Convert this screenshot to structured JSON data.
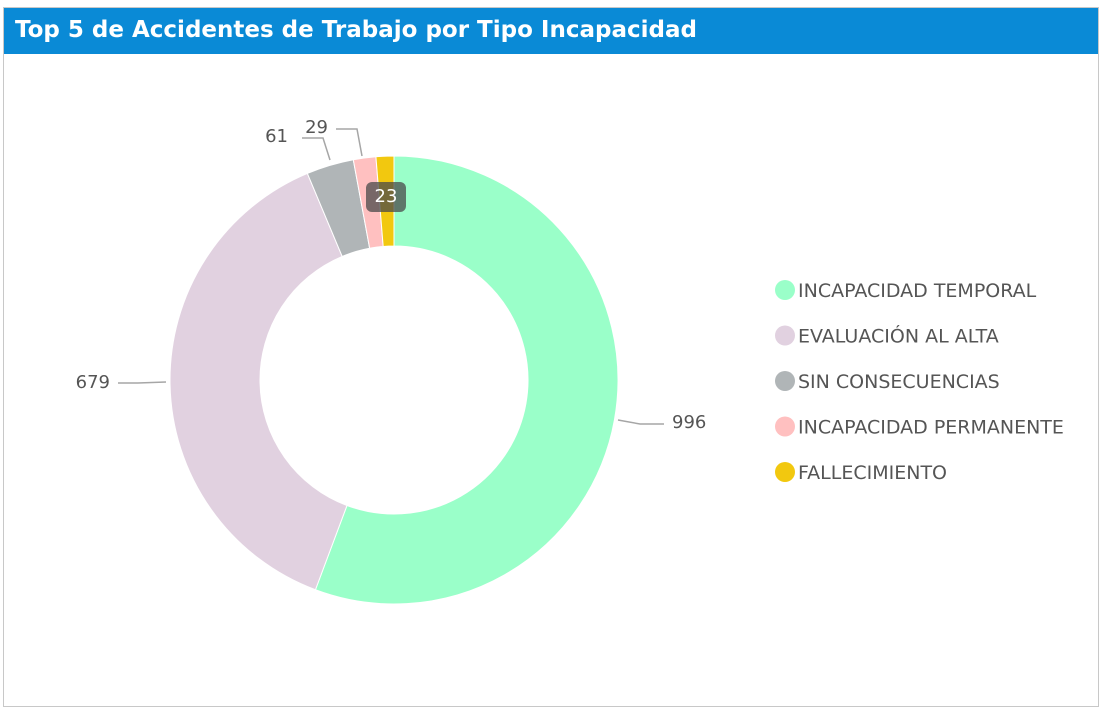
{
  "header": {
    "title": "Top 5 de Accidentes de Trabajo por Tipo Incapacidad",
    "background": "#0a8ad6"
  },
  "chart_data": {
    "type": "pie",
    "variant": "donut",
    "title": "Top 5 de Accidentes de Trabajo por Tipo Incapacidad",
    "categories": [
      "INCAPACIDAD TEMPORAL",
      "EVALUACIÓN AL ALTA",
      "SIN CONSECUENCIAS",
      "INCAPACIDAD PERMANENTE",
      "FALLECIMIENTO"
    ],
    "values": [
      996,
      679,
      61,
      29,
      23
    ],
    "colors": [
      "#9affc9",
      "#e1d1e0",
      "#b0b5b7",
      "#ffc0c0",
      "#f2c80f"
    ],
    "legend_position": "right",
    "start_angle": "top, clockwise",
    "highlighted_label": "23"
  }
}
